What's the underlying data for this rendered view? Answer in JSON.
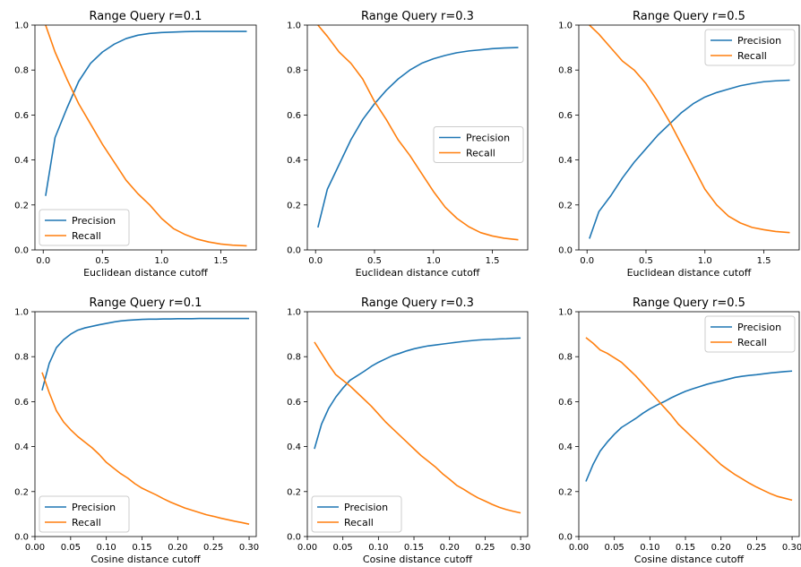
{
  "colors": {
    "precision": "#1f77b4",
    "recall": "#ff7f0e"
  },
  "chart_data": [
    {
      "type": "line",
      "title": "Range Query r=0.1",
      "xlabel": "Euclidean distance cutoff",
      "xlim": [
        -0.07,
        1.8
      ],
      "ylim": [
        0,
        1
      ],
      "xticks": [
        0.0,
        0.5,
        1.0,
        1.5
      ],
      "xtick_labels": [
        "0.0",
        "0.5",
        "1.0",
        "1.5"
      ],
      "yticks": [
        0,
        0.2,
        0.4,
        0.6,
        0.8,
        1.0
      ],
      "ytick_labels": [
        "0.0",
        "0.2",
        "0.4",
        "0.6",
        "0.8",
        "1.0"
      ],
      "legend": "lower-left",
      "x": [
        0.02,
        0.1,
        0.2,
        0.3,
        0.4,
        0.5,
        0.6,
        0.7,
        0.8,
        0.9,
        1.0,
        1.1,
        1.2,
        1.3,
        1.4,
        1.5,
        1.6,
        1.72
      ],
      "series": [
        {
          "name": "Precision",
          "values": [
            0.24,
            0.5,
            0.63,
            0.75,
            0.83,
            0.88,
            0.915,
            0.94,
            0.955,
            0.963,
            0.967,
            0.969,
            0.971,
            0.972,
            0.972,
            0.972,
            0.972,
            0.972
          ]
        },
        {
          "name": "Recall",
          "values": [
            1.0,
            0.88,
            0.76,
            0.65,
            0.56,
            0.47,
            0.39,
            0.31,
            0.25,
            0.2,
            0.14,
            0.095,
            0.068,
            0.048,
            0.035,
            0.026,
            0.021,
            0.018
          ]
        }
      ]
    },
    {
      "type": "line",
      "title": "Range Query r=0.3",
      "xlabel": "Euclidean distance cutoff",
      "xlim": [
        -0.07,
        1.8
      ],
      "ylim": [
        0,
        1
      ],
      "xticks": [
        0.0,
        0.5,
        1.0,
        1.5
      ],
      "xtick_labels": [
        "0.0",
        "0.5",
        "1.0",
        "1.5"
      ],
      "yticks": [
        0,
        0.2,
        0.4,
        0.6,
        0.8,
        1.0
      ],
      "ytick_labels": [
        "0.0",
        "0.2",
        "0.4",
        "0.6",
        "0.8",
        "1.0"
      ],
      "legend": "center-right",
      "x": [
        0.02,
        0.1,
        0.2,
        0.3,
        0.4,
        0.5,
        0.6,
        0.7,
        0.8,
        0.9,
        1.0,
        1.1,
        1.2,
        1.3,
        1.4,
        1.5,
        1.6,
        1.72
      ],
      "series": [
        {
          "name": "Precision",
          "values": [
            0.1,
            0.27,
            0.38,
            0.49,
            0.58,
            0.65,
            0.71,
            0.76,
            0.8,
            0.83,
            0.85,
            0.865,
            0.877,
            0.885,
            0.89,
            0.895,
            0.898,
            0.9
          ]
        },
        {
          "name": "Recall",
          "values": [
            1.0,
            0.95,
            0.88,
            0.83,
            0.76,
            0.66,
            0.58,
            0.49,
            0.42,
            0.34,
            0.26,
            0.19,
            0.14,
            0.103,
            0.077,
            0.062,
            0.052,
            0.045
          ]
        }
      ]
    },
    {
      "type": "line",
      "title": "Range Query r=0.5",
      "xlabel": "Euclidean distance cutoff",
      "xlim": [
        -0.07,
        1.8
      ],
      "ylim": [
        0,
        1
      ],
      "xticks": [
        0.0,
        0.5,
        1.0,
        1.5
      ],
      "xtick_labels": [
        "0.0",
        "0.5",
        "1.0",
        "1.5"
      ],
      "yticks": [
        0,
        0.2,
        0.4,
        0.6,
        0.8,
        1.0
      ],
      "ytick_labels": [
        "0.0",
        "0.2",
        "0.4",
        "0.6",
        "0.8",
        "1.0"
      ],
      "legend": "top-right",
      "x": [
        0.02,
        0.1,
        0.2,
        0.3,
        0.4,
        0.5,
        0.6,
        0.7,
        0.8,
        0.9,
        1.0,
        1.1,
        1.2,
        1.3,
        1.4,
        1.5,
        1.6,
        1.72
      ],
      "series": [
        {
          "name": "Precision",
          "values": [
            0.05,
            0.17,
            0.24,
            0.32,
            0.39,
            0.45,
            0.51,
            0.56,
            0.61,
            0.65,
            0.68,
            0.7,
            0.715,
            0.73,
            0.74,
            0.748,
            0.752,
            0.755
          ]
        },
        {
          "name": "Recall",
          "values": [
            1.0,
            0.96,
            0.9,
            0.84,
            0.8,
            0.74,
            0.66,
            0.57,
            0.47,
            0.37,
            0.27,
            0.2,
            0.15,
            0.12,
            0.1,
            0.09,
            0.082,
            0.077
          ]
        }
      ]
    },
    {
      "type": "line",
      "title": "Range Query r=0.1",
      "xlabel": "Cosine distance cutoff",
      "xlim": [
        0.0,
        0.31
      ],
      "ylim": [
        0,
        1
      ],
      "xticks": [
        0.0,
        0.05,
        0.1,
        0.15,
        0.2,
        0.25,
        0.3
      ],
      "xtick_labels": [
        "0.00",
        "0.05",
        "0.10",
        "0.15",
        "0.20",
        "0.25",
        "0.30"
      ],
      "yticks": [
        0,
        0.2,
        0.4,
        0.6,
        0.8,
        1.0
      ],
      "ytick_labels": [
        "0.0",
        "0.2",
        "0.4",
        "0.6",
        "0.8",
        "1.0"
      ],
      "legend": "lower-left",
      "x": [
        0.01,
        0.02,
        0.03,
        0.04,
        0.05,
        0.06,
        0.07,
        0.08,
        0.09,
        0.1,
        0.11,
        0.12,
        0.13,
        0.14,
        0.15,
        0.16,
        0.17,
        0.18,
        0.19,
        0.2,
        0.21,
        0.22,
        0.23,
        0.24,
        0.25,
        0.26,
        0.27,
        0.28,
        0.29,
        0.3
      ],
      "series": [
        {
          "name": "Precision",
          "values": [
            0.65,
            0.77,
            0.84,
            0.875,
            0.9,
            0.918,
            0.928,
            0.935,
            0.942,
            0.948,
            0.954,
            0.959,
            0.962,
            0.964,
            0.966,
            0.967,
            0.967,
            0.968,
            0.968,
            0.969,
            0.969,
            0.969,
            0.97,
            0.97,
            0.97,
            0.97,
            0.97,
            0.97,
            0.97,
            0.97
          ]
        },
        {
          "name": "Recall",
          "values": [
            0.73,
            0.64,
            0.56,
            0.51,
            0.475,
            0.445,
            0.42,
            0.395,
            0.365,
            0.33,
            0.305,
            0.28,
            0.26,
            0.235,
            0.215,
            0.2,
            0.185,
            0.168,
            0.153,
            0.14,
            0.127,
            0.117,
            0.107,
            0.097,
            0.09,
            0.082,
            0.075,
            0.068,
            0.062,
            0.055
          ]
        }
      ]
    },
    {
      "type": "line",
      "title": "Range Query r=0.3",
      "xlabel": "Cosine distance cutoff",
      "xlim": [
        0.0,
        0.31
      ],
      "ylim": [
        0,
        1
      ],
      "xticks": [
        0.0,
        0.05,
        0.1,
        0.15,
        0.2,
        0.25,
        0.3
      ],
      "xtick_labels": [
        "0.00",
        "0.05",
        "0.10",
        "0.15",
        "0.20",
        "0.25",
        "0.30"
      ],
      "yticks": [
        0,
        0.2,
        0.4,
        0.6,
        0.8,
        1.0
      ],
      "ytick_labels": [
        "0.0",
        "0.2",
        "0.4",
        "0.6",
        "0.8",
        "1.0"
      ],
      "legend": "lower-left",
      "x": [
        0.01,
        0.02,
        0.03,
        0.04,
        0.05,
        0.06,
        0.07,
        0.08,
        0.09,
        0.1,
        0.11,
        0.12,
        0.13,
        0.14,
        0.15,
        0.16,
        0.17,
        0.18,
        0.19,
        0.2,
        0.21,
        0.22,
        0.23,
        0.24,
        0.25,
        0.26,
        0.27,
        0.28,
        0.29,
        0.3
      ],
      "series": [
        {
          "name": "Precision",
          "values": [
            0.39,
            0.5,
            0.57,
            0.62,
            0.66,
            0.695,
            0.715,
            0.735,
            0.757,
            0.775,
            0.79,
            0.805,
            0.815,
            0.826,
            0.835,
            0.842,
            0.848,
            0.852,
            0.856,
            0.86,
            0.864,
            0.868,
            0.871,
            0.874,
            0.876,
            0.877,
            0.879,
            0.88,
            0.882,
            0.883
          ]
        },
        {
          "name": "Recall",
          "values": [
            0.865,
            0.815,
            0.765,
            0.72,
            0.695,
            0.67,
            0.64,
            0.61,
            0.58,
            0.545,
            0.51,
            0.48,
            0.45,
            0.42,
            0.39,
            0.36,
            0.335,
            0.31,
            0.28,
            0.255,
            0.228,
            0.21,
            0.19,
            0.172,
            0.158,
            0.143,
            0.13,
            0.12,
            0.112,
            0.105
          ]
        }
      ]
    },
    {
      "type": "line",
      "title": "Range Query r=0.5",
      "xlabel": "Cosine distance cutoff",
      "xlim": [
        0.0,
        0.31
      ],
      "ylim": [
        0,
        1
      ],
      "xticks": [
        0.0,
        0.05,
        0.1,
        0.15,
        0.2,
        0.25,
        0.3
      ],
      "xtick_labels": [
        "0.00",
        "0.05",
        "0.10",
        "0.15",
        "0.20",
        "0.25",
        "0.30"
      ],
      "yticks": [
        0,
        0.2,
        0.4,
        0.6,
        0.8,
        1.0
      ],
      "ytick_labels": [
        "0.0",
        "0.2",
        "0.4",
        "0.6",
        "0.8",
        "1.0"
      ],
      "legend": "top-right",
      "x": [
        0.01,
        0.02,
        0.03,
        0.04,
        0.05,
        0.06,
        0.07,
        0.08,
        0.09,
        0.1,
        0.11,
        0.12,
        0.13,
        0.14,
        0.15,
        0.16,
        0.17,
        0.18,
        0.19,
        0.2,
        0.21,
        0.22,
        0.23,
        0.24,
        0.25,
        0.26,
        0.27,
        0.28,
        0.29,
        0.3
      ],
      "series": [
        {
          "name": "Precision",
          "values": [
            0.245,
            0.32,
            0.38,
            0.42,
            0.455,
            0.485,
            0.505,
            0.525,
            0.548,
            0.568,
            0.585,
            0.6,
            0.617,
            0.632,
            0.646,
            0.657,
            0.667,
            0.677,
            0.685,
            0.692,
            0.7,
            0.708,
            0.713,
            0.717,
            0.72,
            0.724,
            0.728,
            0.731,
            0.734,
            0.736
          ]
        },
        {
          "name": "Recall",
          "values": [
            0.885,
            0.86,
            0.83,
            0.815,
            0.795,
            0.775,
            0.745,
            0.715,
            0.68,
            0.645,
            0.61,
            0.575,
            0.54,
            0.5,
            0.47,
            0.44,
            0.41,
            0.38,
            0.35,
            0.32,
            0.297,
            0.275,
            0.256,
            0.237,
            0.22,
            0.205,
            0.19,
            0.178,
            0.17,
            0.162
          ]
        }
      ]
    }
  ]
}
